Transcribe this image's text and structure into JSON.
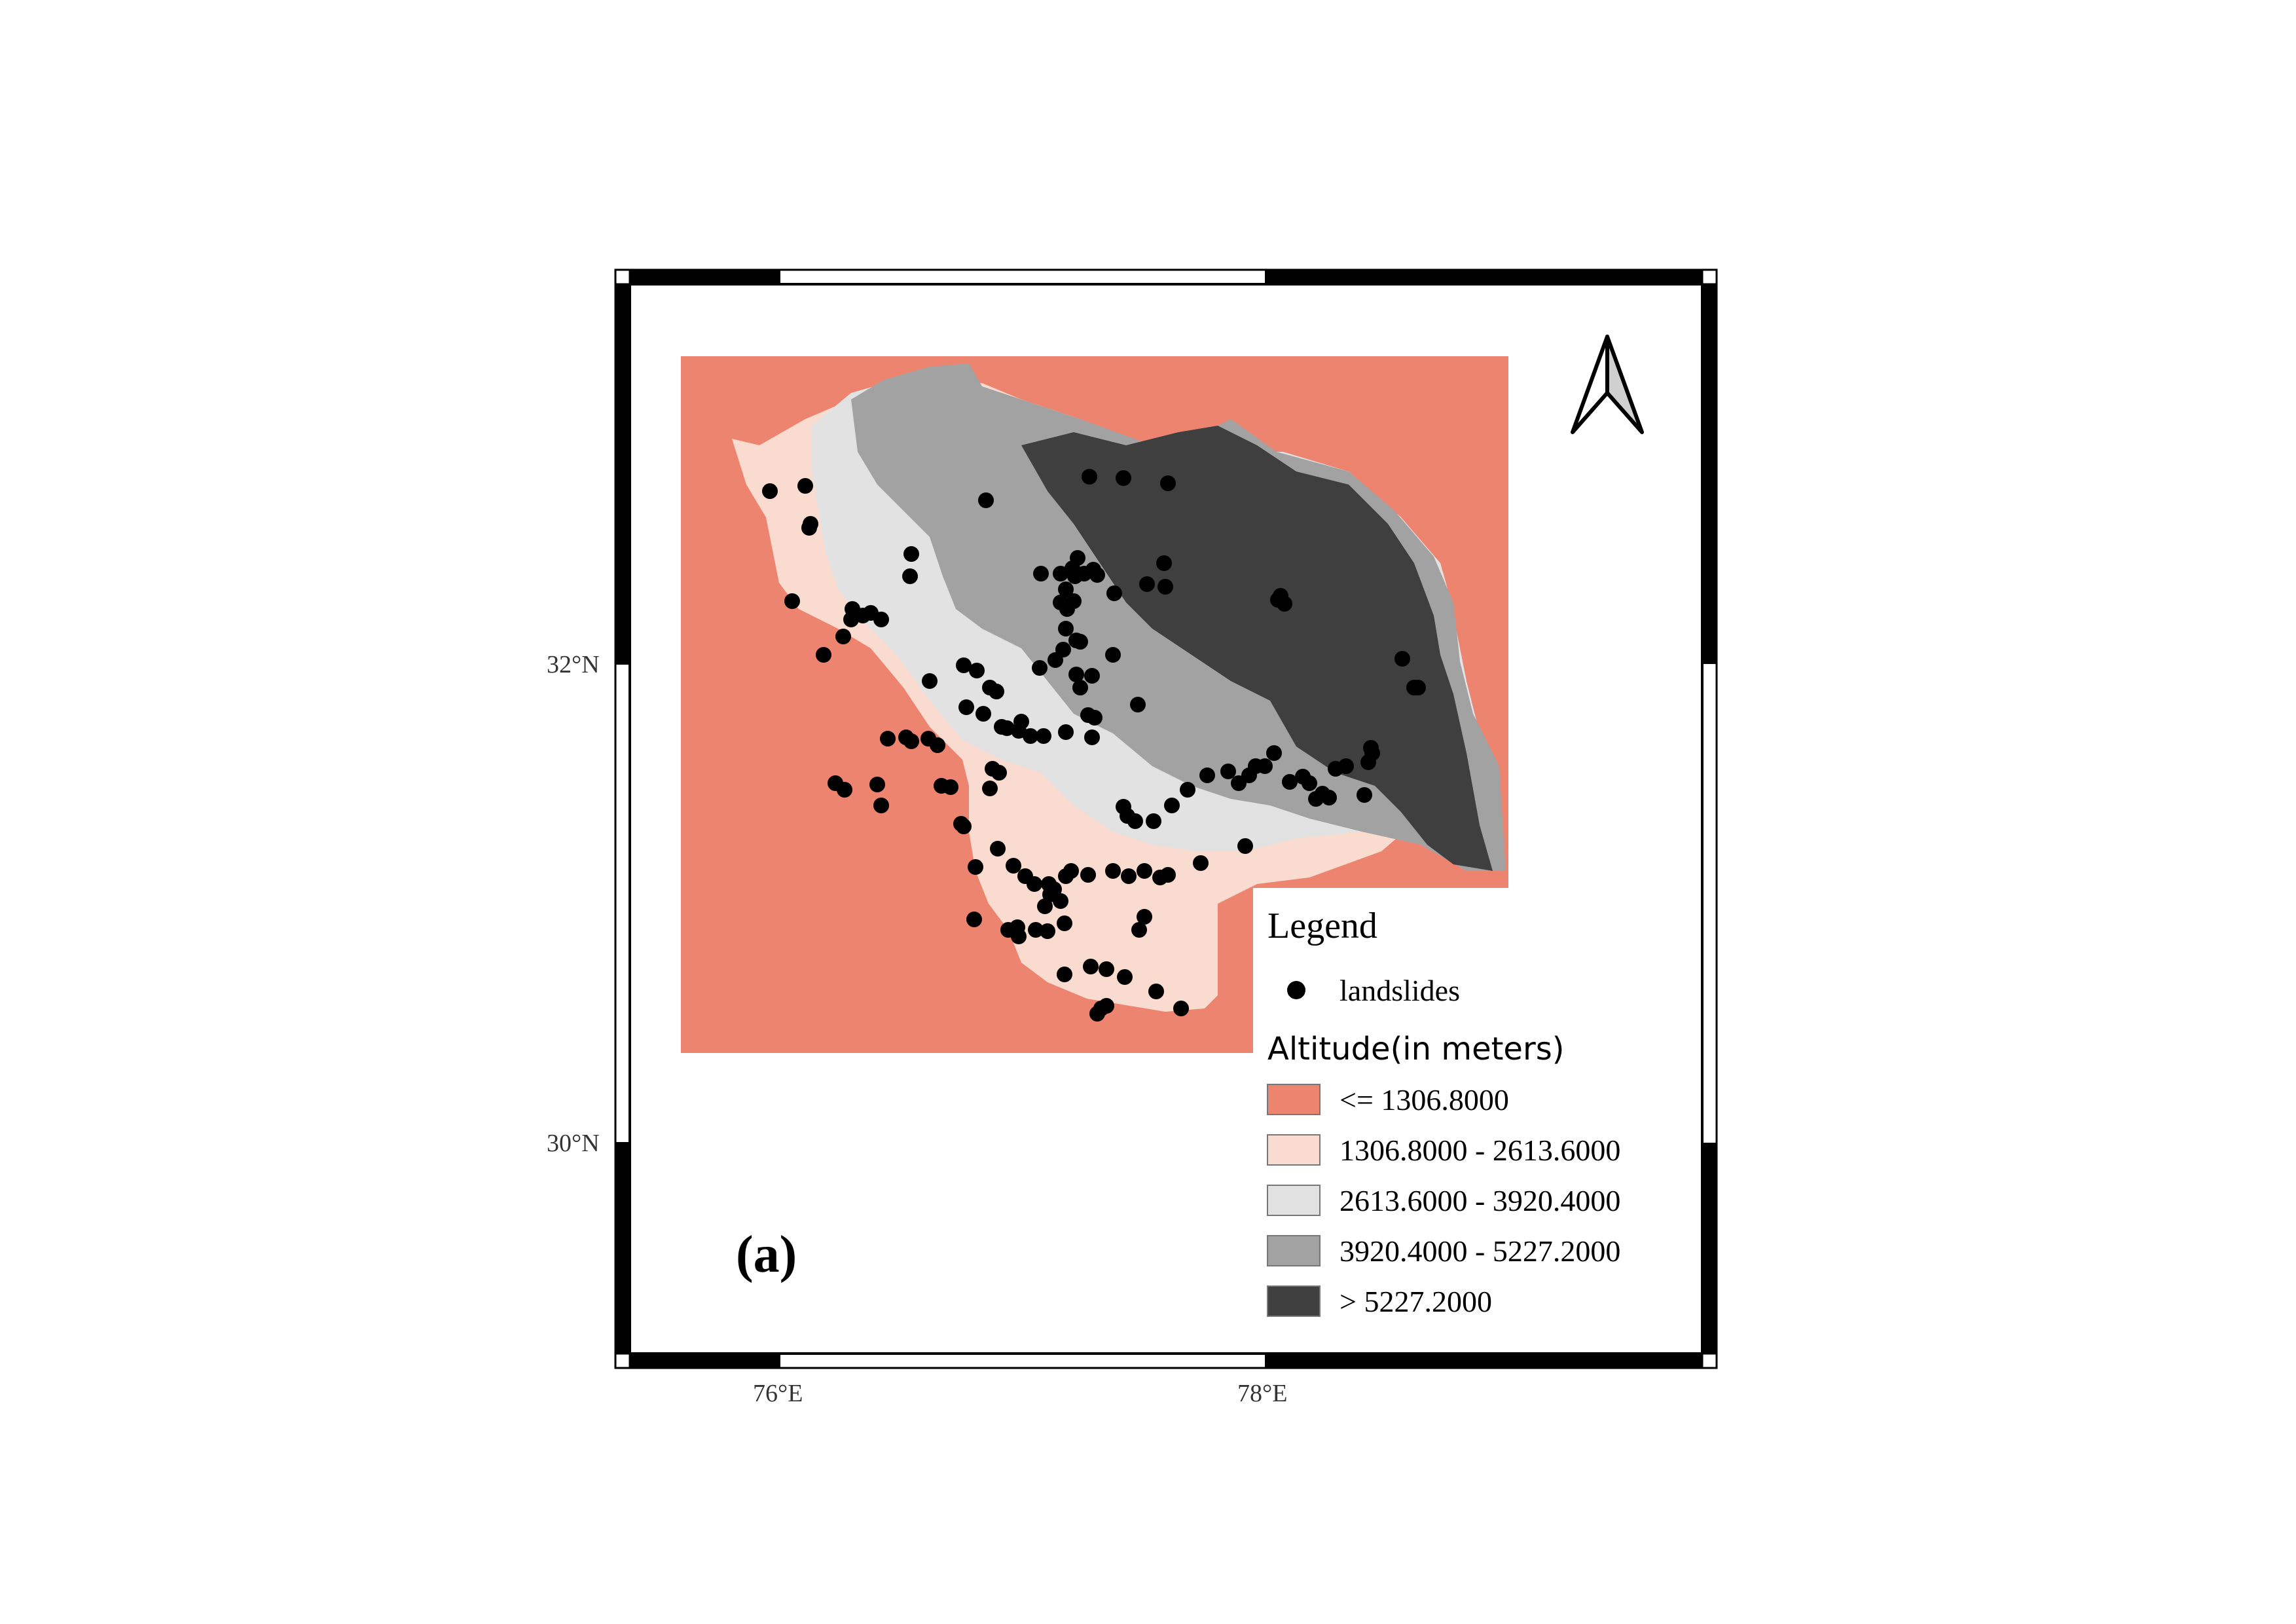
{
  "map": {
    "panel_label": "(a)",
    "ticks": {
      "lat": [
        {
          "label": "32°N",
          "value": 32
        },
        {
          "label": "30°N",
          "value": 30
        }
      ],
      "lon": [
        {
          "label": "76°E",
          "value": 76
        },
        {
          "label": "78°E",
          "value": 78
        }
      ]
    }
  },
  "north_arrow": {
    "icon": "north-arrow-icon"
  },
  "legend": {
    "title": "Legend",
    "point_label": "landslides",
    "raster_title": "Altitude(in meters)",
    "classes": [
      {
        "label": "<= 1306.8000",
        "color": "#ec8470"
      },
      {
        "label": "1306.8000 - 2613.6000",
        "color": "#fadbd0"
      },
      {
        "label": "2613.6000 - 3920.4000",
        "color": "#e2e2e2"
      },
      {
        "label": "3920.4000 - 5227.2000",
        "color": "#a2a2a2"
      },
      {
        "label": "> 5227.2000",
        "color": "#3f3f3f"
      }
    ]
  },
  "colors": {
    "point": "#000000",
    "frame": "#000000",
    "background": "#ec8470"
  }
}
